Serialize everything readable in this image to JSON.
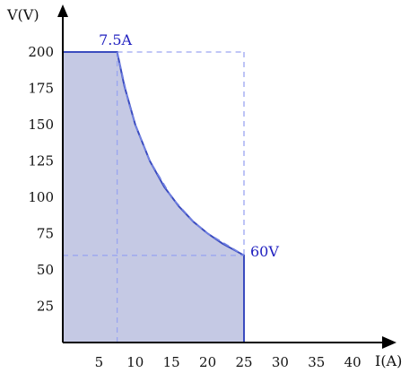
{
  "chart_data": {
    "type": "area",
    "xlabel": "I(A)",
    "ylabel": "V(V)",
    "xlim": [
      0,
      46
    ],
    "ylim": [
      0,
      225
    ],
    "x_ticks": [
      5,
      10,
      15,
      20,
      25,
      30,
      35,
      40
    ],
    "y_ticks": [
      25,
      50,
      75,
      100,
      125,
      150,
      175,
      200
    ],
    "grid": false,
    "annotations": [
      {
        "text": "7.5A",
        "x": 7.5,
        "y": 200
      },
      {
        "text": "60V",
        "x": 25,
        "y": 60
      }
    ],
    "series": [
      {
        "style": "solid-area",
        "points": [
          [
            0,
            200
          ],
          [
            7.5,
            200
          ],
          [
            8.5,
            176.5
          ],
          [
            10,
            150
          ],
          [
            12,
            125
          ],
          [
            14,
            107.1
          ],
          [
            16,
            93.8
          ],
          [
            18,
            83.3
          ],
          [
            20,
            75
          ],
          [
            22,
            68.2
          ],
          [
            25,
            60
          ],
          [
            25,
            0
          ]
        ]
      },
      {
        "style": "dashed-envelope",
        "points": [
          [
            7.5,
            200
          ],
          [
            9,
            166.7
          ],
          [
            10,
            150
          ],
          [
            12,
            125
          ],
          [
            15,
            100
          ],
          [
            18,
            83.3
          ],
          [
            20,
            75
          ],
          [
            25,
            60
          ]
        ]
      },
      {
        "style": "dashed-guides",
        "lines": [
          [
            [
              7.5,
              0
            ],
            [
              7.5,
              200
            ]
          ],
          [
            [
              0,
              60
            ],
            [
              25,
              60
            ]
          ],
          [
            [
              7.5,
              200
            ],
            [
              25,
              200
            ]
          ],
          [
            [
              25,
              200
            ],
            [
              25,
              60
            ]
          ]
        ]
      }
    ],
    "colors": {
      "fill": "#c5c9e4",
      "line": "#3a4bbf",
      "dash": "#6f7fe0",
      "guide": "#9aa5f0",
      "axis": "#000000",
      "annotation": "#1f1fbf"
    }
  }
}
